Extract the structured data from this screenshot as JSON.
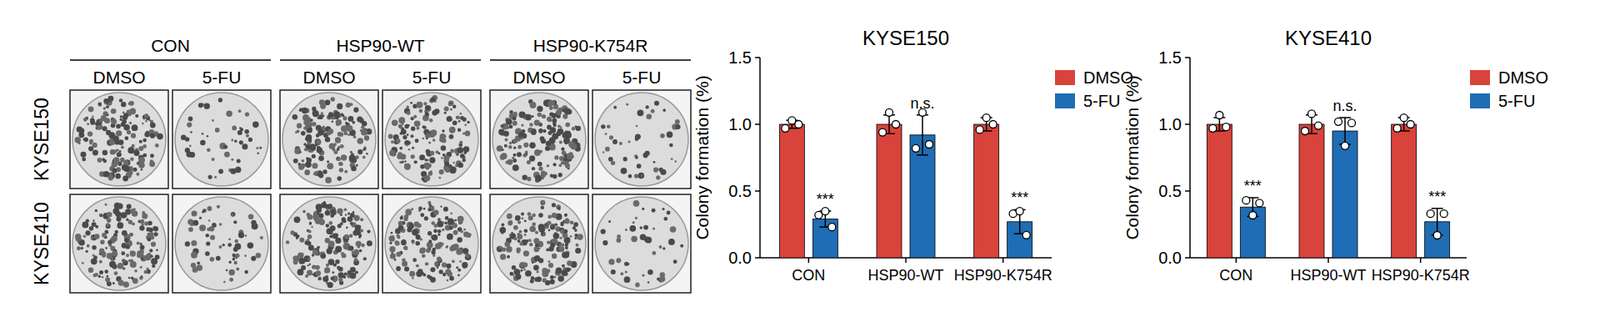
{
  "plate_panel": {
    "groups": [
      "CON",
      "HSP90-WT",
      "HSP90-K754R"
    ],
    "treatments": [
      "DMSO",
      "5-FU"
    ],
    "cell_lines": [
      "KYSE150",
      "KYSE410"
    ]
  },
  "chart_data": [
    {
      "type": "bar",
      "title": "KYSE150",
      "y_label": "Colony formation (%)",
      "categories": [
        "CON",
        "HSP90-WT",
        "HSP90-K754R"
      ],
      "series": [
        {
          "name": "DMSO",
          "color": "#d8433c",
          "values": [
            1.0,
            1.0,
            1.0
          ],
          "errors": [
            0.03,
            0.07,
            0.05
          ],
          "points": [
            [
              0.97,
              1.01,
              1.0
            ],
            [
              0.94,
              1.07,
              1.0
            ],
            [
              0.96,
              1.03,
              1.0
            ]
          ]
        },
        {
          "name": "5-FU",
          "color": "#1f6db4",
          "values": [
            0.29,
            0.92,
            0.27
          ],
          "errors": [
            0.06,
            0.15,
            0.09
          ],
          "points": [
            [
              0.32,
              0.33,
              0.23
            ],
            [
              0.82,
              1.07,
              0.85
            ],
            [
              0.33,
              0.33,
              0.17
            ]
          ]
        }
      ],
      "annotations": [
        {
          "text": "***",
          "category": "CON",
          "series": "5-FU"
        },
        {
          "text": "n.s.",
          "category": "HSP90-WT",
          "series": "5-FU"
        },
        {
          "text": "***",
          "category": "HSP90-K754R",
          "series": "5-FU"
        }
      ],
      "ylim": [
        0,
        1.5
      ],
      "yticks": [
        {
          "value": 0,
          "label": "0.0"
        },
        {
          "value": 0.5,
          "label": "0.5"
        },
        {
          "value": 1,
          "label": "1.0"
        },
        {
          "value": 1.5,
          "label": "1.5"
        }
      ],
      "grid": false,
      "legend": "top-right"
    },
    {
      "type": "bar",
      "title": "KYSE410",
      "y_label": "Colony formation (%)",
      "categories": [
        "CON",
        "HSP90-WT",
        "HSP90-K754R"
      ],
      "series": [
        {
          "name": "DMSO",
          "color": "#d8433c",
          "values": [
            1.0,
            1.0,
            1.0
          ],
          "errors": [
            0.05,
            0.07,
            0.05
          ],
          "points": [
            [
              0.97,
              1.05,
              0.98
            ],
            [
              0.95,
              1.06,
              0.99
            ],
            [
              0.97,
              1.03,
              1.0
            ]
          ]
        },
        {
          "name": "5-FU",
          "color": "#1f6db4",
          "values": [
            0.38,
            0.95,
            0.27
          ],
          "errors": [
            0.07,
            0.1,
            0.1
          ],
          "points": [
            [
              0.43,
              0.3,
              0.41
            ],
            [
              1.02,
              0.82,
              1.01
            ],
            [
              0.33,
              0.15,
              0.33
            ]
          ]
        }
      ],
      "annotations": [
        {
          "text": "***",
          "category": "CON",
          "series": "5-FU"
        },
        {
          "text": "n.s.",
          "category": "HSP90-WT",
          "series": "5-FU"
        },
        {
          "text": "***",
          "category": "HSP90-K754R",
          "series": "5-FU"
        }
      ],
      "ylim": [
        0,
        1.5
      ],
      "yticks": [
        {
          "value": 0,
          "label": "0.0"
        },
        {
          "value": 0.5,
          "label": "0.5"
        },
        {
          "value": 1,
          "label": "1.0"
        },
        {
          "value": 1.5,
          "label": "1.5"
        }
      ],
      "grid": false,
      "legend": "top-right"
    }
  ]
}
